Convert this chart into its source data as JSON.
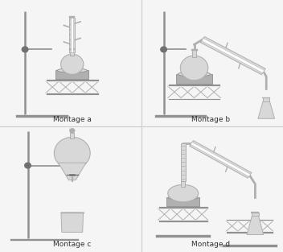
{
  "labels": [
    "Montage a",
    "Montage b",
    "Montage c",
    "Montage d"
  ],
  "bg_color": "#f5f5f5",
  "gl": "#d8d8d8",
  "gm": "#b0b0b0",
  "gd": "#909090",
  "gdd": "#707070",
  "white": "#ffffff",
  "text_color": "#333333",
  "label_fontsize": 6.5,
  "border_color": "#cccccc"
}
